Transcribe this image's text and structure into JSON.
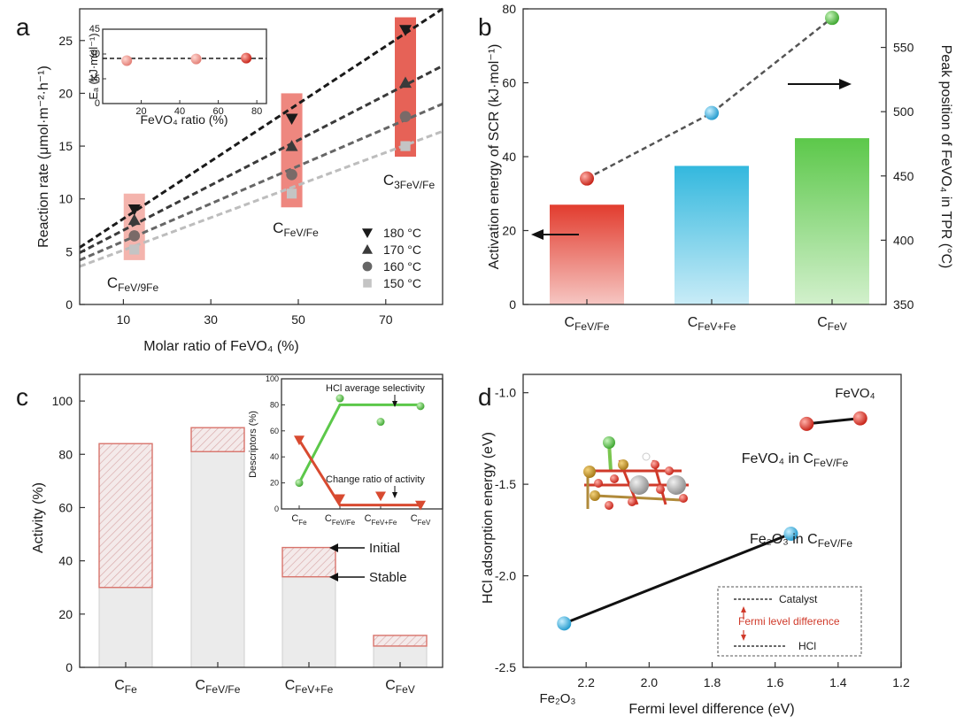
{
  "panels": {
    "a": {
      "letter": "a"
    },
    "b": {
      "letter": "b"
    },
    "c": {
      "letter": "c"
    },
    "d": {
      "letter": "d"
    }
  },
  "chart_data": [
    {
      "panel": "a",
      "type": "scatter",
      "title": "",
      "xlabel": "Molar ratio of FeVO₄ (%)",
      "ylabel": "Reaction rate (μmol·m⁻²·h⁻¹)",
      "xlim": [
        0,
        83
      ],
      "ylim": [
        0,
        28
      ],
      "xticks": [
        "10",
        "30",
        "50",
        "70"
      ],
      "yticks": [
        "0",
        "5",
        "10",
        "15",
        "20",
        "25"
      ],
      "series": [
        {
          "name": "180 °C",
          "marker": "triangle-down",
          "color": "#1a1a1a",
          "x": [
            12.5,
            48.5,
            74.5
          ],
          "y": [
            9.0,
            17.6,
            26.0
          ],
          "fit": [
            [
              0,
              5.4
            ],
            [
              83,
              28.0
            ]
          ]
        },
        {
          "name": "170 °C",
          "marker": "triangle-up",
          "color": "#3a3a3a",
          "x": [
            12.5,
            48.5,
            74.5
          ],
          "y": [
            8.0,
            15.0,
            21.0
          ],
          "fit": [
            [
              0,
              4.9
            ],
            [
              83,
              22.6
            ]
          ]
        },
        {
          "name": "160 °C",
          "marker": "circle",
          "color": "#666666",
          "x": [
            12.5,
            48.5,
            74.5
          ],
          "y": [
            6.5,
            12.3,
            17.8
          ],
          "fit": [
            [
              0,
              4.2
            ],
            [
              83,
              19.0
            ]
          ]
        },
        {
          "name": "150 °C",
          "marker": "square",
          "color": "#bdbdbd",
          "x": [
            12.5,
            48.5,
            74.5
          ],
          "y": [
            5.2,
            10.5,
            15.0
          ],
          "fit": [
            [
              0,
              3.6
            ],
            [
              83,
              16.4
            ]
          ]
        }
      ],
      "annotations": [
        {
          "base": "C",
          "sub": "FeV/9Fe",
          "x": 12.5
        },
        {
          "base": "C",
          "sub": "FeV/Fe",
          "x": 48.5
        },
        {
          "base": "C",
          "sub": "3FeV/Fe",
          "x": 74.5
        }
      ],
      "inset": {
        "xlabel": "FeVO₄ ratio (%)",
        "ylabel": "Eₐ (kJ·mol⁻¹)",
        "xticks": [
          "20",
          "40",
          "60",
          "80"
        ],
        "yticks": [
          "0",
          "15",
          "30",
          "45"
        ],
        "xlim": [
          0,
          85
        ],
        "ylim": [
          0,
          45
        ],
        "x": [
          12.5,
          48.5,
          74.5
        ],
        "y": [
          26.0,
          27.0,
          27.5
        ]
      }
    },
    {
      "panel": "b",
      "type": "bar",
      "xlabel": "",
      "ylabel": "Activation energy of SCR (kJ·mol⁻¹)",
      "y2label": "Peak position of FeVO₄ in TPR (°C)",
      "ylim": [
        0,
        80
      ],
      "y2lim": [
        350,
        580
      ],
      "yticks": [
        "0",
        "20",
        "40",
        "60",
        "80"
      ],
      "y2ticks": [
        "350",
        "400",
        "450",
        "500",
        "550"
      ],
      "categories": [
        {
          "base": "C",
          "sub": "FeV/Fe"
        },
        {
          "base": "C",
          "sub": "FeV+Fe"
        },
        {
          "base": "C",
          "sub": "FeV"
        }
      ],
      "bar_values": [
        27,
        37.5,
        45
      ],
      "bar_colors": [
        "#e23c2e",
        "#33b8de",
        "#5cc84a"
      ],
      "line_values": [
        448,
        499,
        573
      ]
    },
    {
      "panel": "c",
      "type": "bar",
      "xlabel": "",
      "ylabel": "Activity (%)",
      "ylim": [
        0,
        110
      ],
      "yticks": [
        "0",
        "20",
        "40",
        "60",
        "80",
        "100"
      ],
      "categories": [
        {
          "base": "C",
          "sub": "Fe"
        },
        {
          "base": "C",
          "sub": "FeV/Fe"
        },
        {
          "base": "C",
          "sub": "FeV+Fe"
        },
        {
          "base": "C",
          "sub": "FeV"
        }
      ],
      "series": [
        {
          "name": "Initial",
          "values": [
            84,
            90,
            45,
            12
          ]
        },
        {
          "name": "Stable",
          "values": [
            30,
            81,
            34,
            8
          ]
        }
      ],
      "labels": {
        "initial": "Initial",
        "stable": "Stable"
      },
      "inset": {
        "ylabel": "Descriptors (%)",
        "ylim": [
          0,
          100
        ],
        "yticks": [
          "0",
          "20",
          "40",
          "60",
          "80",
          "100"
        ],
        "categories": [
          {
            "base": "C",
            "sub": "Fe"
          },
          {
            "base": "C",
            "sub": "FeV/Fe"
          },
          {
            "base": "C",
            "sub": "FeV+Fe"
          },
          {
            "base": "C",
            "sub": "FeV"
          }
        ],
        "selectivity": {
          "name": "HCl average selectivity",
          "values": [
            20,
            85,
            67,
            79
          ],
          "fit": [
            20,
            80,
            80,
            80
          ]
        },
        "change": {
          "name": "Change ratio of activity",
          "values": [
            53,
            8,
            10,
            3
          ],
          "fit": [
            53,
            3,
            3,
            3
          ]
        }
      }
    },
    {
      "panel": "d",
      "type": "scatter",
      "xlabel": "Fermi level difference (eV)",
      "ylabel": "HCl adsorption energy (eV)",
      "xlim": [
        2.4,
        1.2
      ],
      "ylim": [
        -2.5,
        -0.9
      ],
      "xticks": [
        "2.2",
        "2.0",
        "1.8",
        "1.6",
        "1.4",
        "1.2"
      ],
      "yticks": [
        "-2.5",
        "-2.0",
        "-1.5",
        "-1.0"
      ],
      "points": [
        {
          "label": "FeVO₄",
          "x": 1.33,
          "y": -1.14,
          "color": "#e0342a"
        },
        {
          "label": "FeVO₄ in CFeV/Fe",
          "x": 1.5,
          "y": -1.17,
          "color": "#e0342a"
        },
        {
          "label": "Fe₂O₃ in CFeV/Fe",
          "x": 1.55,
          "y": -1.77,
          "color": "#36b4e4"
        },
        {
          "label": "Fe₂O₃",
          "x": 2.27,
          "y": -2.26,
          "color": "#36b4e4"
        }
      ],
      "label_text": {
        "fevo4": "FeVO₄",
        "fevo4_in_base": "FeVO₄ in C",
        "fevo4_in_sub": "FeV/Fe",
        "fe2o3_in_base": "Fe₂O₃ in C",
        "fe2o3_in_sub": "FeV/Fe",
        "fe2o3": "Fe₂O₃"
      },
      "legend": {
        "catalyst": "Catalyst",
        "fermi": "Fermi level difference",
        "hcl": "HCl"
      }
    }
  ]
}
